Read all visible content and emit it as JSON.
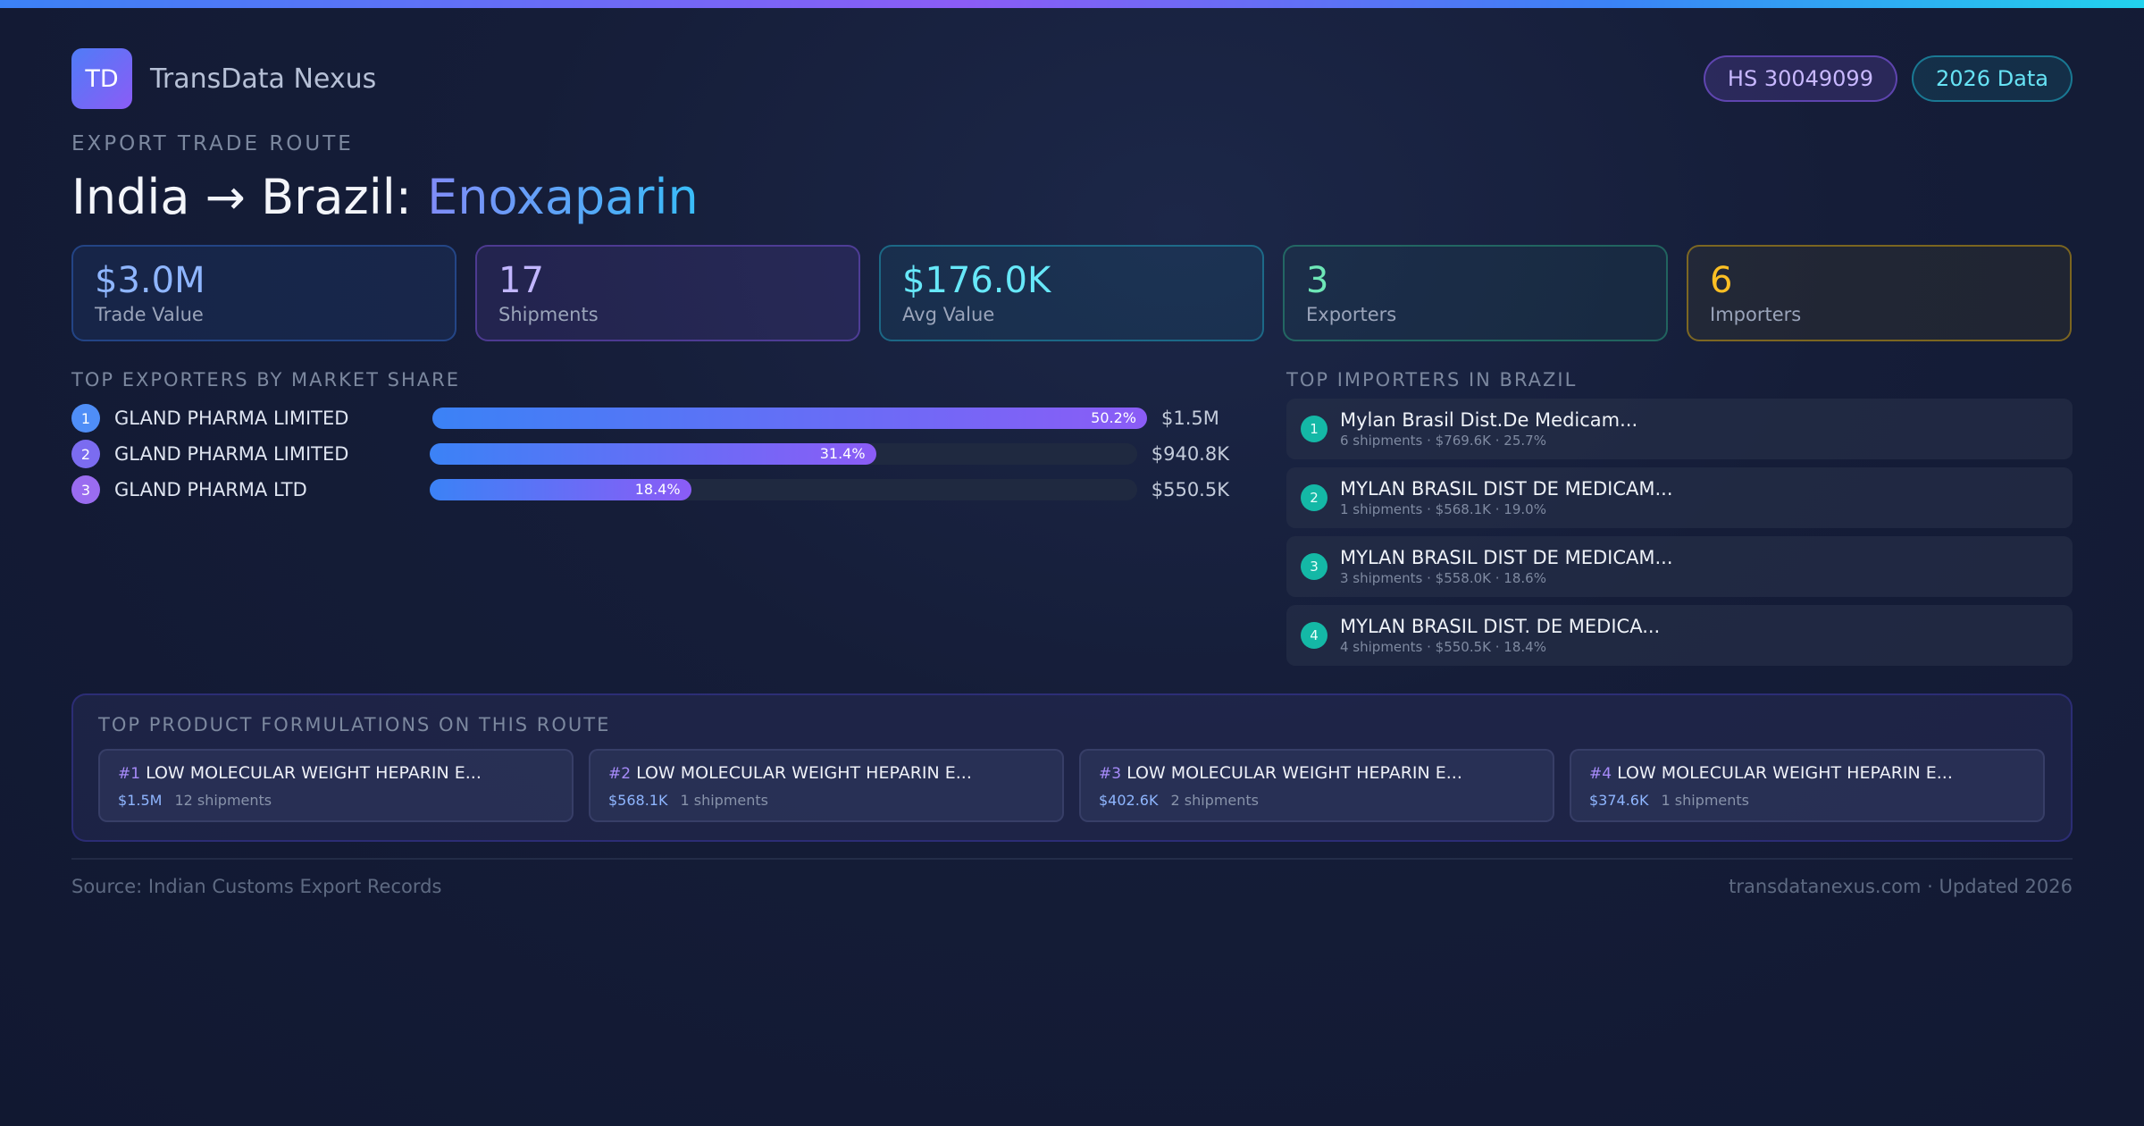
{
  "brand": {
    "logo_text": "TD",
    "name": "TransData Nexus"
  },
  "badges": {
    "hs_code": "HS 30049099",
    "data_year": "2026 Data"
  },
  "route": {
    "eyebrow": "EXPORT TRADE ROUTE",
    "title_prefix": "India → Brazil:",
    "product": "Enoxaparin"
  },
  "stats": [
    {
      "value": "$3.0M",
      "label": "Trade Value"
    },
    {
      "value": "17",
      "label": "Shipments"
    },
    {
      "value": "$176.0K",
      "label": "Avg Value"
    },
    {
      "value": "3",
      "label": "Exporters"
    },
    {
      "value": "6",
      "label": "Importers"
    }
  ],
  "exporters": {
    "title": "TOP EXPORTERS BY MARKET SHARE",
    "rows": [
      {
        "rank": "1",
        "name": "GLAND PHARMA LIMITED",
        "share": 50.2,
        "share_label": "50.2%",
        "value": "$1.5M",
        "dot_color": "#4f8ef7"
      },
      {
        "rank": "2",
        "name": "GLAND PHARMA LIMITED",
        "share": 31.4,
        "share_label": "31.4%",
        "value": "$940.8K",
        "dot_color": "#7b6cf0"
      },
      {
        "rank": "3",
        "name": "GLAND PHARMA LTD",
        "share": 18.4,
        "share_label": "18.4%",
        "value": "$550.5K",
        "dot_color": "#9a6cf0"
      }
    ]
  },
  "importers": {
    "title": "TOP IMPORTERS IN BRAZIL",
    "rows": [
      {
        "rank": "1",
        "name": "Mylan Brasil Dist.De Medicam...",
        "meta": "6 shipments · $769.6K · 25.7%"
      },
      {
        "rank": "2",
        "name": "MYLAN BRASIL DIST DE MEDICAM...",
        "meta": "1 shipments · $568.1K · 19.0%"
      },
      {
        "rank": "3",
        "name": "MYLAN BRASIL DIST DE MEDICAM...",
        "meta": "3 shipments · $558.0K · 18.6%"
      },
      {
        "rank": "4",
        "name": "MYLAN BRASIL DIST. DE MEDICA...",
        "meta": "4 shipments · $550.5K · 18.4%"
      }
    ]
  },
  "formulations": {
    "title": "TOP PRODUCT FORMULATIONS ON THIS ROUTE",
    "cards": [
      {
        "num": "#1",
        "name": "LOW MOLECULAR WEIGHT HEPARIN E...",
        "value": "$1.5M",
        "shipments": "12 shipments"
      },
      {
        "num": "#2",
        "name": "LOW MOLECULAR WEIGHT HEPARIN E...",
        "value": "$568.1K",
        "shipments": "1 shipments"
      },
      {
        "num": "#3",
        "name": "LOW MOLECULAR WEIGHT HEPARIN E...",
        "value": "$402.6K",
        "shipments": "2 shipments"
      },
      {
        "num": "#4",
        "name": "LOW MOLECULAR WEIGHT HEPARIN E...",
        "value": "$374.6K",
        "shipments": "1 shipments"
      }
    ]
  },
  "footer": {
    "source": "Source: Indian Customs Export Records",
    "site": "transdatanexus.com · Updated 2026"
  }
}
